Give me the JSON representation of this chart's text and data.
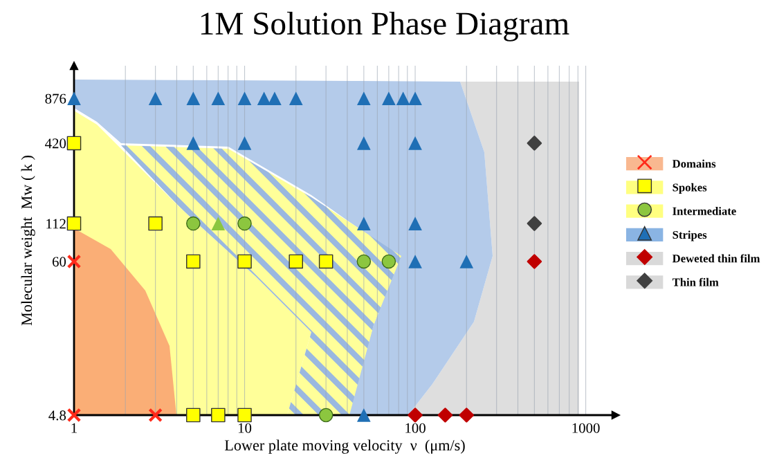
{
  "chart_data": {
    "type": "scatter",
    "title": "1M Solution Phase Diagram",
    "xlabel": "Lower plate moving velocity  ν  (μm/s)",
    "ylabel": "Molecular weight  Mw ( k )",
    "log": "xy",
    "xlim": [
      1,
      1500
    ],
    "xticks": [
      1,
      10,
      100,
      1000
    ],
    "ylim": [
      4.8,
      1500
    ],
    "yticks": [
      4.8,
      60,
      112,
      420,
      876
    ],
    "grid": "x",
    "legend": "right",
    "series": [
      {
        "name": "Domains",
        "color": "#ff2a1a",
        "marker": "cross",
        "x": [
          1,
          1,
          3
        ],
        "values": [
          60,
          4.8,
          4.8
        ]
      },
      {
        "name": "Spokes",
        "color": "#ffff00",
        "marker": "square",
        "x": [
          1,
          1,
          3,
          5,
          10,
          20,
          30,
          5,
          7,
          10
        ],
        "values": [
          420,
          112,
          112,
          60,
          60,
          60,
          60,
          4.8,
          4.8,
          4.8
        ]
      },
      {
        "name": "Intermediate",
        "color": "#8cc63f",
        "marker": "circle",
        "x": [
          5,
          10,
          50,
          70,
          30
        ],
        "values": [
          112,
          112,
          60,
          60,
          4.8
        ]
      },
      {
        "color": "#8cc63f",
        "marker": "triangle",
        "x": [
          7
        ],
        "values": [
          112
        ]
      },
      {
        "name": "Stripes",
        "color": "#1f6fb5",
        "marker": "triangle",
        "x": [
          1,
          3,
          5,
          7,
          10,
          13,
          15,
          20,
          50,
          70,
          85,
          100,
          5,
          10,
          50,
          100,
          50,
          100,
          100,
          200,
          50
        ],
        "values": [
          876,
          876,
          876,
          876,
          876,
          876,
          876,
          876,
          876,
          876,
          876,
          876,
          420,
          420,
          420,
          420,
          112,
          112,
          60,
          60,
          4.8
        ]
      },
      {
        "name": "Deweted thin film",
        "color": "#c00000",
        "marker": "diamond",
        "x": [
          500,
          100,
          150,
          200
        ],
        "values": [
          60,
          4.8,
          4.8,
          4.8
        ]
      },
      {
        "name": "Thin film",
        "color": "#404040",
        "marker": "diamond",
        "x": [
          500,
          500
        ],
        "values": [
          420,
          112
        ]
      }
    ]
  }
}
